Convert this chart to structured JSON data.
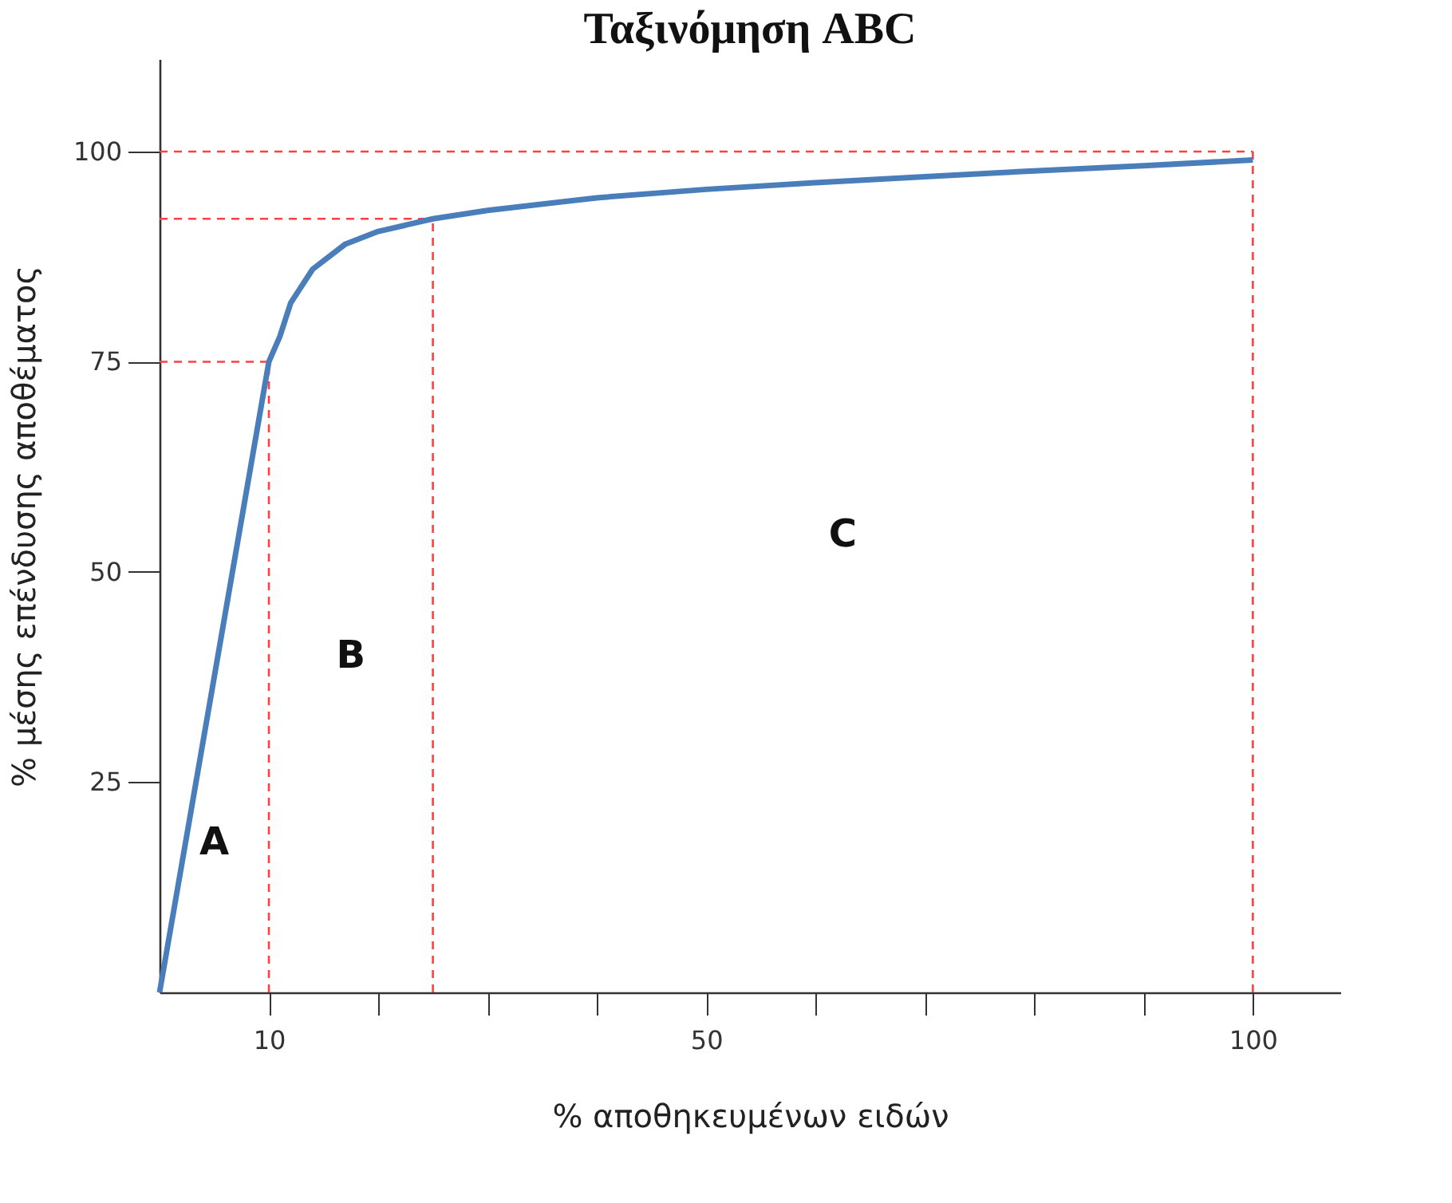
{
  "chart_data": {
    "type": "line",
    "title": "Ταξινόμηση ABC",
    "xlabel": "% αποθηκευμένων ειδών",
    "ylabel": "% μέσης επένδυσης αποθέματος",
    "x": [
      0,
      10,
      11,
      12,
      14,
      17,
      20,
      25,
      30,
      40,
      50,
      60,
      70,
      80,
      90,
      100
    ],
    "series": [
      {
        "color": "#4a7ebb",
        "values": [
          0,
          75,
          78,
          82,
          86,
          89,
          90.5,
          92,
          93,
          94.5,
          95.5,
          96.3,
          97,
          97.7,
          98.3,
          99
        ]
      }
    ],
    "xlim": [
      0,
      108
    ],
    "ylim": [
      0,
      111
    ],
    "xticks": [
      10,
      {
        "value": 20,
        "label": null
      },
      {
        "value": 30,
        "label": null
      },
      {
        "value": 40,
        "label": null
      },
      50,
      {
        "value": 60,
        "label": null
      },
      {
        "value": 70,
        "label": null
      },
      {
        "value": 80,
        "label": null
      },
      {
        "value": 90,
        "label": null
      },
      100
    ],
    "yticks": [
      25,
      50,
      75,
      100
    ],
    "ref_lines": [
      {
        "axis": "x",
        "value": 10,
        "color": "#ff4040",
        "line_style": "dashed"
      },
      {
        "axis": "x",
        "value": 25,
        "color": "#ff4040",
        "line_style": "dashed"
      },
      {
        "axis": "x",
        "value": 100,
        "color": "#ff4040",
        "line_style": "dashed"
      },
      {
        "axis": "y",
        "value": 75,
        "color": "#ff4040",
        "line_style": "dashed"
      },
      {
        "axis": "y",
        "value": 92,
        "color": "#ff4040",
        "line_style": "dashed"
      },
      {
        "axis": "y",
        "value": 100,
        "color": "#ff4040",
        "line_style": "dashed"
      }
    ],
    "annotations": [
      "A",
      "B",
      "C"
    ],
    "grid": false,
    "marker": "none",
    "line_style": "solid"
  }
}
